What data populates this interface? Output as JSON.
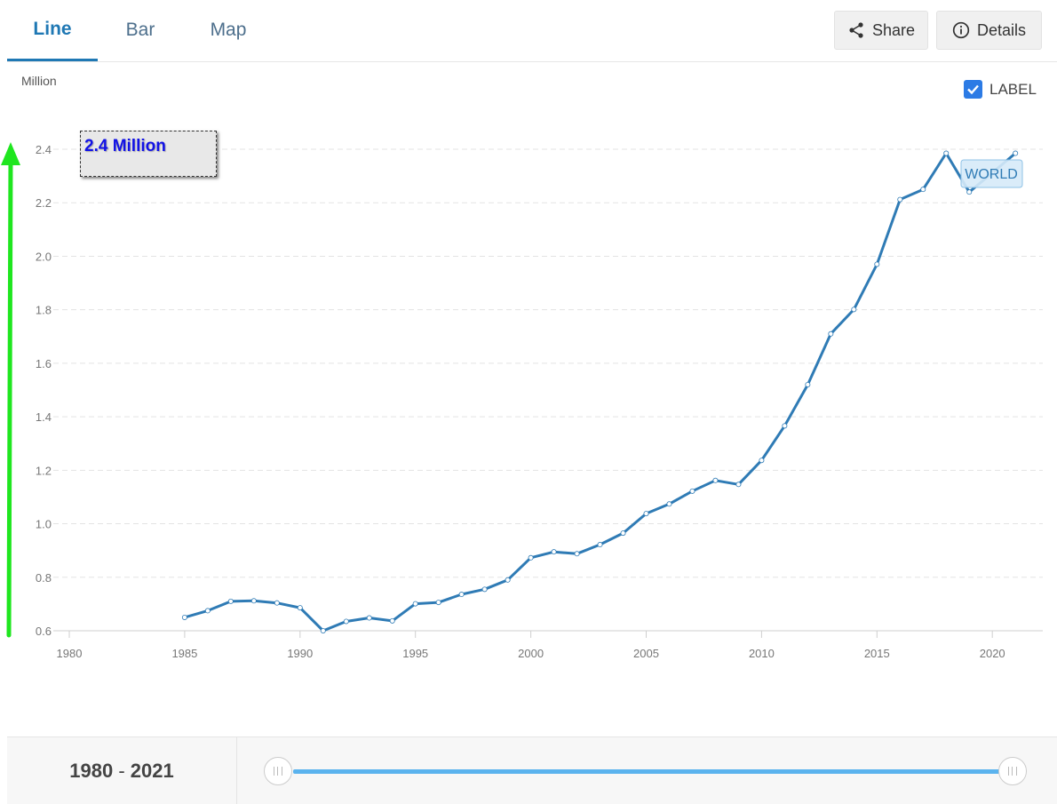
{
  "tabs": [
    {
      "label": "Line",
      "active": true
    },
    {
      "label": "Bar",
      "active": false
    },
    {
      "label": "Map",
      "active": false
    }
  ],
  "toolbar": {
    "share_label": "Share",
    "share_icon": "share-icon",
    "details_label": "Details",
    "details_icon": "info-icon"
  },
  "label_toggle": {
    "label": "LABEL",
    "checked": true
  },
  "annotation": {
    "text": "2.4 Million"
  },
  "footer": {
    "range_start": "1980",
    "range_end": "2021",
    "range_sep": " - "
  },
  "chart_data": {
    "type": "line",
    "ylabel": "Million",
    "xlim": [
      1980,
      2022
    ],
    "ylim": [
      0.6,
      2.4
    ],
    "x_ticks": [
      1980,
      1985,
      1990,
      1995,
      2000,
      2005,
      2010,
      2015,
      2020
    ],
    "y_ticks": [
      0.6,
      0.8,
      1.0,
      1.2,
      1.4,
      1.6,
      1.8,
      2.0,
      2.2,
      2.4
    ],
    "grid": true,
    "line_color": "#2f7bb5",
    "series": [
      {
        "name": "WORLD",
        "x": [
          1985,
          1986,
          1987,
          1988,
          1989,
          1990,
          1991,
          1992,
          1993,
          1994,
          1995,
          1996,
          1997,
          1998,
          1999,
          2000,
          2001,
          2002,
          2003,
          2004,
          2005,
          2006,
          2007,
          2008,
          2009,
          2010,
          2011,
          2012,
          2013,
          2014,
          2015,
          2016,
          2017,
          2018,
          2019,
          2020,
          2021
        ],
        "values": [
          0.65,
          0.675,
          0.71,
          0.712,
          0.704,
          0.686,
          0.6,
          0.635,
          0.648,
          0.637,
          0.701,
          0.706,
          0.736,
          0.755,
          0.79,
          0.873,
          0.895,
          0.888,
          0.922,
          0.965,
          1.038,
          1.074,
          1.122,
          1.162,
          1.147,
          1.237,
          1.366,
          1.52,
          1.71,
          1.801,
          1.97,
          2.212,
          2.25,
          2.385,
          2.24,
          2.312,
          2.385
        ]
      }
    ]
  }
}
